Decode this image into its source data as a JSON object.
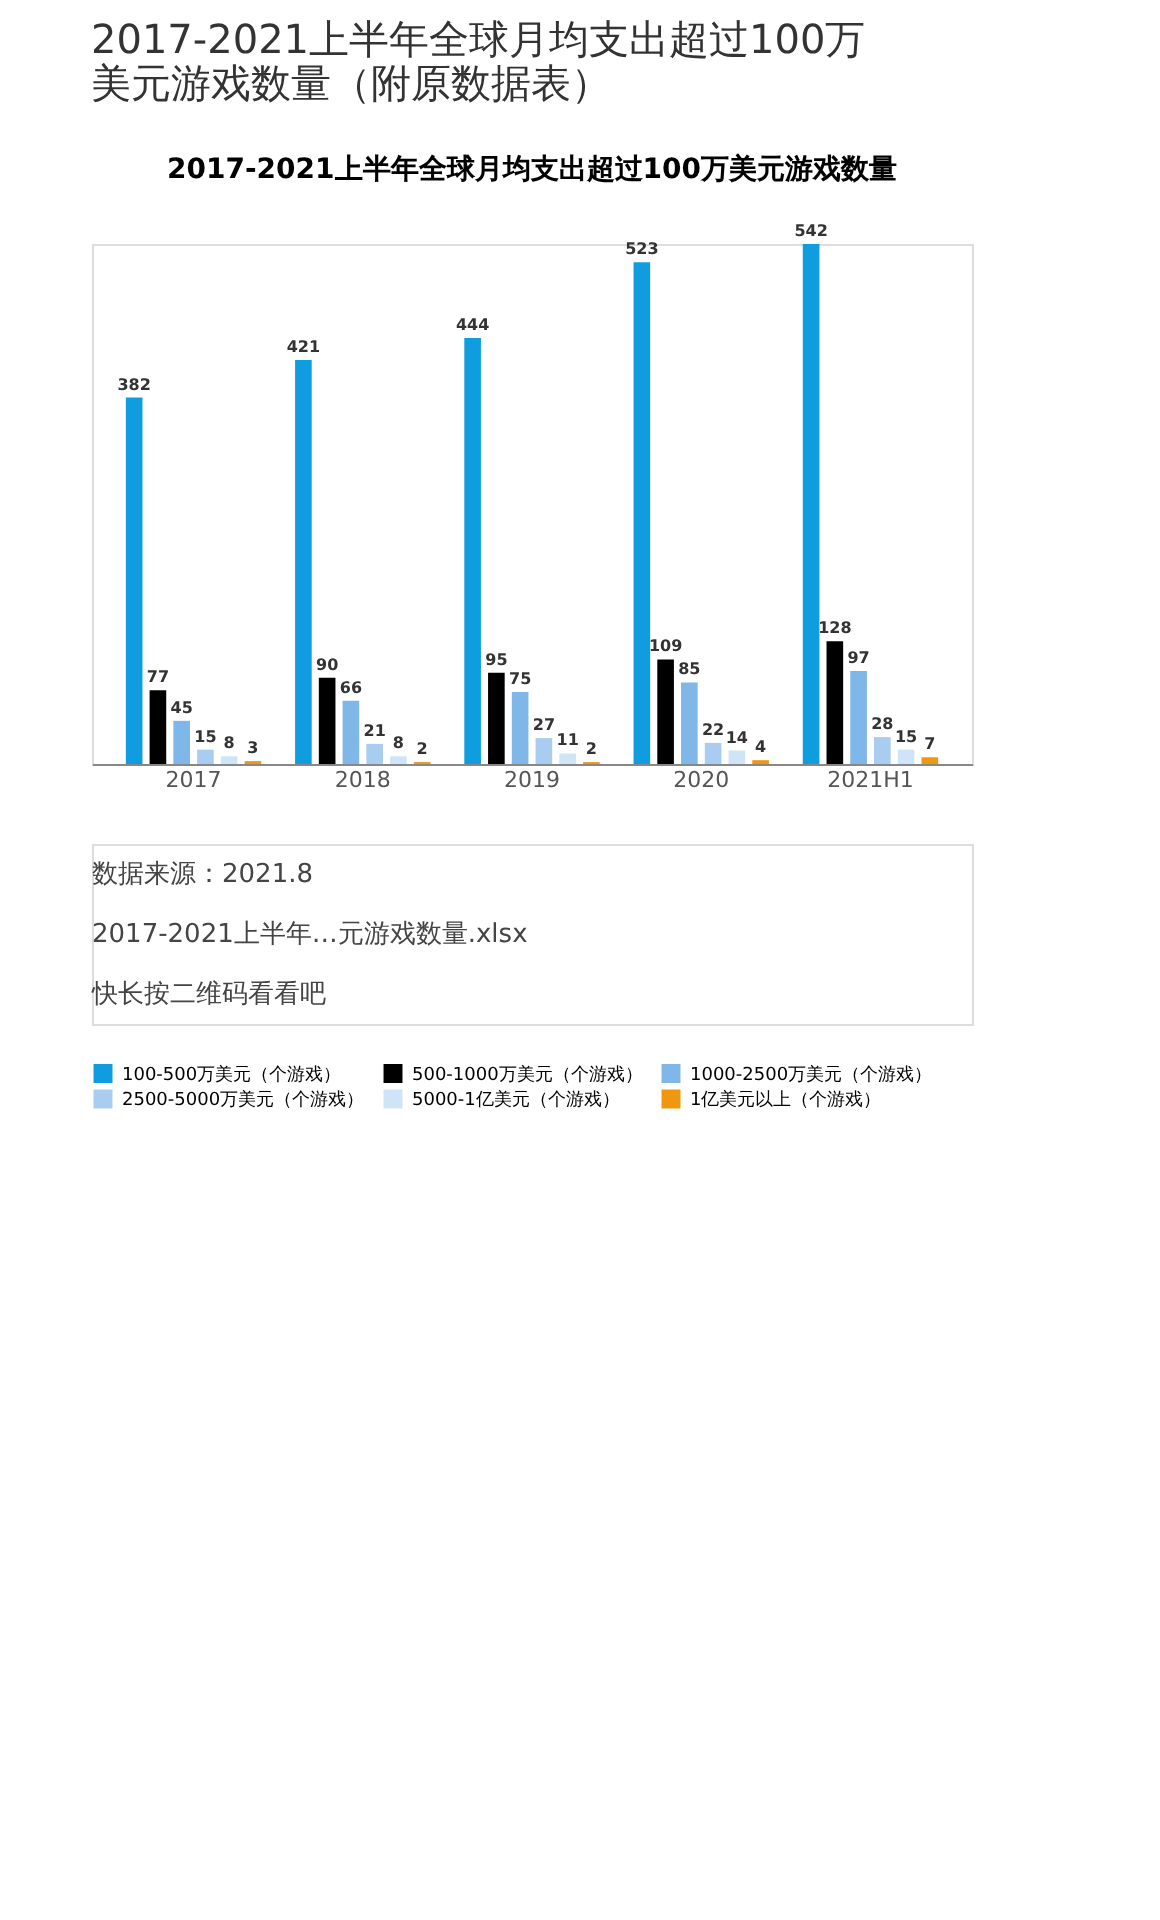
{
  "chart_data": {
    "type": "bar",
    "title": "2017-2021上半年全球月均支出超过100万美元游戏数量（附原数据表）",
    "subtitle": "2017-2021上半年全球月均支出超过100万美元游戏数量",
    "categories": [
      "2017",
      "2018",
      "2019",
      "2020",
      "2021H1"
    ],
    "series": [
      {
        "name": "100-500万美元（个游戏）",
        "color": "#0f9de0",
        "values": [
          382,
          421,
          444,
          523,
          542
        ]
      },
      {
        "name": "500-1000万美元（个游戏）",
        "color": "#000000",
        "values": [
          77,
          90,
          95,
          109,
          128
        ]
      },
      {
        "name": "1000-2500万美元（个游戏）",
        "color": "#7fb7e8",
        "values": [
          45,
          66,
          75,
          85,
          97
        ]
      },
      {
        "name": "2500-5000万美元（个游戏）",
        "color": "#a8cdf0",
        "values": [
          15,
          21,
          27,
          22,
          28
        ]
      },
      {
        "name": "5000-1亿美元（个游戏）",
        "color": "#cfe4f7",
        "values": [
          8,
          8,
          11,
          14,
          15
        ]
      },
      {
        "name": "1亿美元以上（个游戏）",
        "color": "#f0960f",
        "values": [
          3,
          2,
          2,
          4,
          7
        ]
      }
    ],
    "data_labels": true,
    "legend": "bottom",
    "grid": false,
    "tick_labels": "x",
    "annotations": [
      "数据来源：2021.8",
      "2017-2021上半年…元游戏数量.xlsx",
      "快长按二维码看看吧"
    ]
  }
}
